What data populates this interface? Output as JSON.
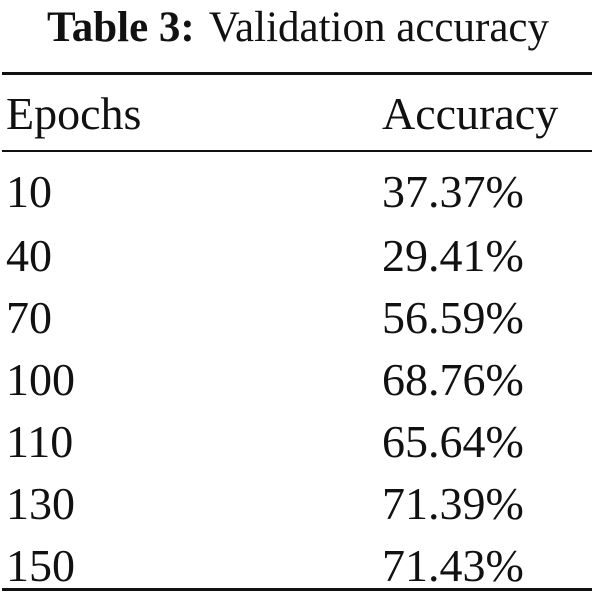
{
  "caption": {
    "label": "Table 3:",
    "text": "Validation accuracy"
  },
  "table": {
    "headers": [
      "Epochs",
      "Accuracy"
    ],
    "rows": [
      [
        "10",
        "37.37%"
      ],
      [
        "40",
        "29.41%"
      ],
      [
        "70",
        "56.59%"
      ],
      [
        "100",
        "68.76%"
      ],
      [
        "110",
        "65.64%"
      ],
      [
        "130",
        "71.39%"
      ],
      [
        "150",
        "71.43%"
      ]
    ]
  }
}
